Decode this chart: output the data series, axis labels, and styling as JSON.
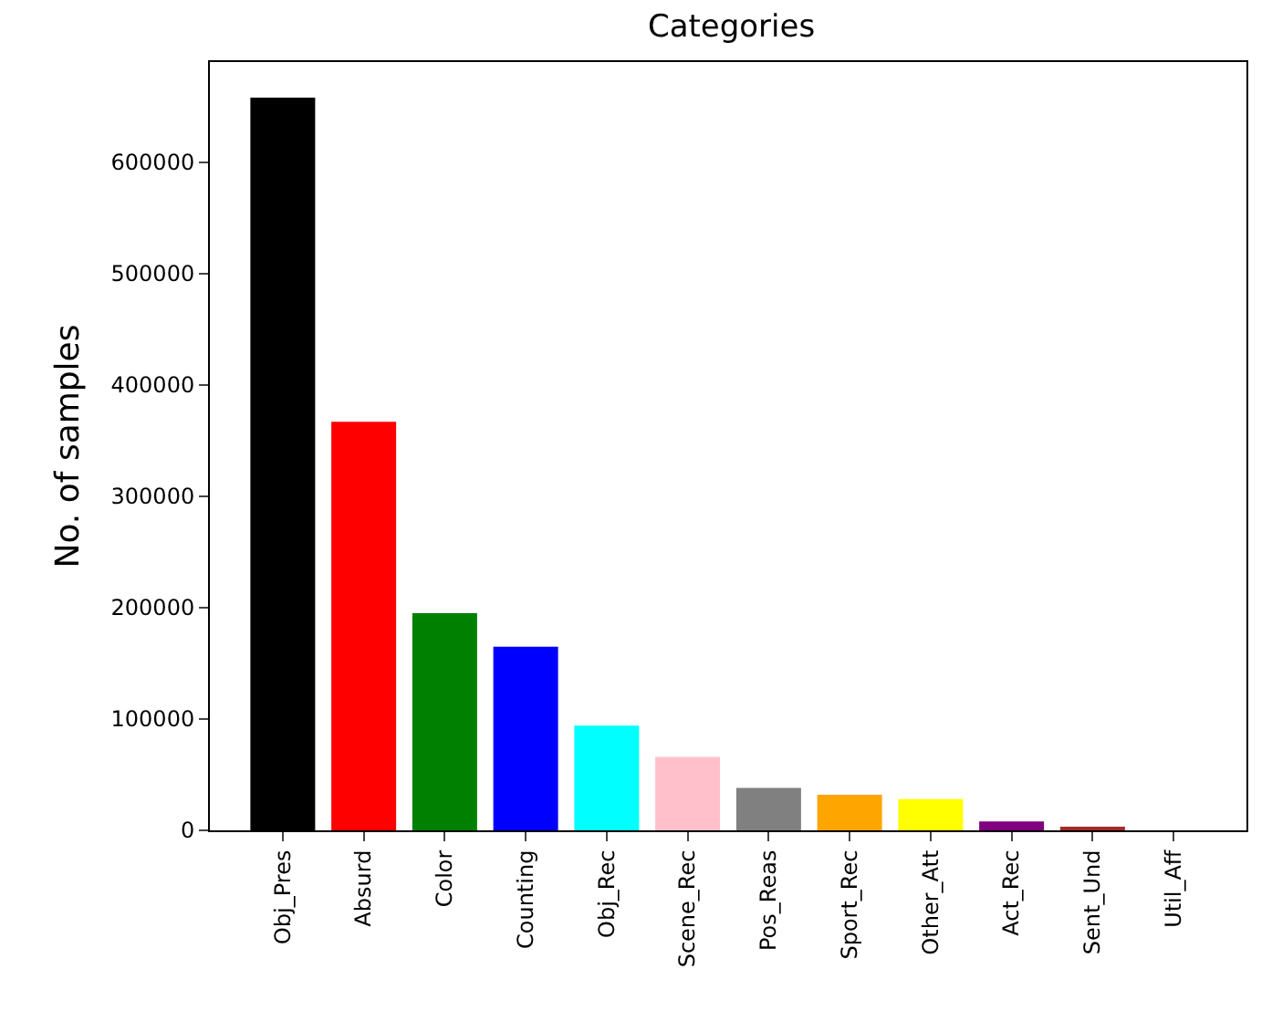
{
  "chart_data": {
    "type": "bar",
    "title": "Categories",
    "ylabel": "No. of samples",
    "categories": [
      "Obj_Pres",
      "Absurd",
      "Color",
      "Counting",
      "Obj_Rec",
      "Scene_Rec",
      "Pos_Reas",
      "Sport_Rec",
      "Other_Att",
      "Act_Rec",
      "Sent_Und",
      "Util_Aff"
    ],
    "values": [
      658000,
      367000,
      195000,
      165000,
      94000,
      66000,
      38000,
      32000,
      28000,
      8000,
      3000,
      0
    ],
    "colors": [
      "#000000",
      "#ff0000",
      "#008000",
      "#0000ff",
      "#00ffff",
      "#ffc0cb",
      "#808080",
      "#ffa500",
      "#ffff00",
      "#800080",
      "#a52a2a",
      "#e6e6e6"
    ],
    "ylim": [
      0,
      690000
    ],
    "yticks": [
      0,
      100000,
      200000,
      300000,
      400000,
      500000,
      600000
    ],
    "grid": false
  }
}
